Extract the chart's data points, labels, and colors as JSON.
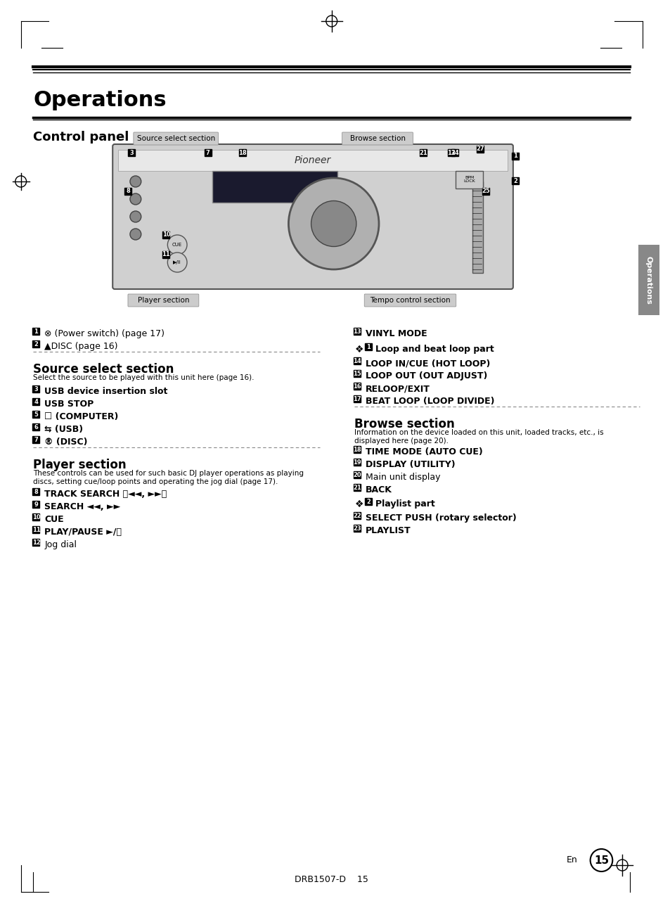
{
  "title": "Operations",
  "subtitle": "Control panel",
  "bg_color": "#ffffff",
  "text_color": "#000000",
  "title_fontsize": 22,
  "subtitle_fontsize": 13,
  "body_fontsize": 9,
  "label_fontsize": 8.5,
  "page_number": "15",
  "footer_text": "DRB1507-D    15",
  "left_items": [
    {
      "num": "1",
      "text": "✓ (Power switch) (page 17)",
      "bold": false,
      "special": "power"
    },
    {
      "num": "2",
      "text": "▲DISC (page 16)",
      "bold": false
    },
    {
      "section": "Source select section",
      "desc": "Select the source to be played with this unit here (page 16)."
    },
    {
      "num": "3",
      "text": "USB device insertion slot",
      "bold": true
    },
    {
      "num": "4",
      "text": "USB STOP",
      "bold": true
    },
    {
      "num": "5",
      "text": "☐ (COMPUTER)",
      "bold": true
    },
    {
      "num": "6",
      "text": "↔ (USB)",
      "bold": true
    },
    {
      "num": "7",
      "text": "® (DISC)",
      "bold": true
    },
    {
      "section": "Player section",
      "desc": "These controls can be used for such basic DJ player operations as playing discs, setting cue/loop points and operating the jog dial (page 17)."
    },
    {
      "num": "8",
      "text": "TRACK SEARCH ⏮◄◄, ►►⏭",
      "bold": true
    },
    {
      "num": "9",
      "text": "SEARCH ◄◄, ►►",
      "bold": true
    },
    {
      "num": "10",
      "text": "CUE",
      "bold": true
    },
    {
      "num": "11",
      "text": "PLAY/PAUSE ►/⏸",
      "bold": true
    },
    {
      "num": "12",
      "text": "Jog dial",
      "bold": false
    }
  ],
  "right_items": [
    {
      "num": "13",
      "text": "VINYL MODE",
      "bold": true
    },
    {
      "diamond": "❖",
      "num_box": "1",
      "text": "Loop and beat loop part",
      "bold": true
    },
    {
      "num": "14",
      "text": "LOOP IN/CUE (HOT LOOP)",
      "bold": true
    },
    {
      "num": "15",
      "text": "LOOP OUT (OUT ADJUST)",
      "bold": true
    },
    {
      "num": "16",
      "text": "RELOOP/EXIT",
      "bold": true
    },
    {
      "num": "17",
      "text": "BEAT LOOP (LOOP DIVIDE)",
      "bold": true
    },
    {
      "section": "Browse section",
      "desc": "Information on the device loaded on this unit, loaded tracks, etc., is displayed here (page 20)."
    },
    {
      "num": "18",
      "text": "TIME MODE (AUTO CUE)",
      "bold": true
    },
    {
      "num": "19",
      "text": "DISPLAY (UTILITY)",
      "bold": true
    },
    {
      "num": "20",
      "text": "Main unit display",
      "bold": false
    },
    {
      "num": "21",
      "text": "BACK",
      "bold": true
    },
    {
      "diamond2": "❖",
      "num_box": "2",
      "text": "Playlist part",
      "bold": true
    },
    {
      "num": "22",
      "text": "SELECT PUSH (rotary selector)",
      "bold": true
    },
    {
      "num": "23",
      "text": "PLAYLIST",
      "bold": true
    }
  ],
  "sidebar_text": "Operations",
  "source_section_label": "Source select section",
  "browse_section_label": "Browse section",
  "player_section_label": "Player section",
  "tempo_section_label": "Tempo control section"
}
